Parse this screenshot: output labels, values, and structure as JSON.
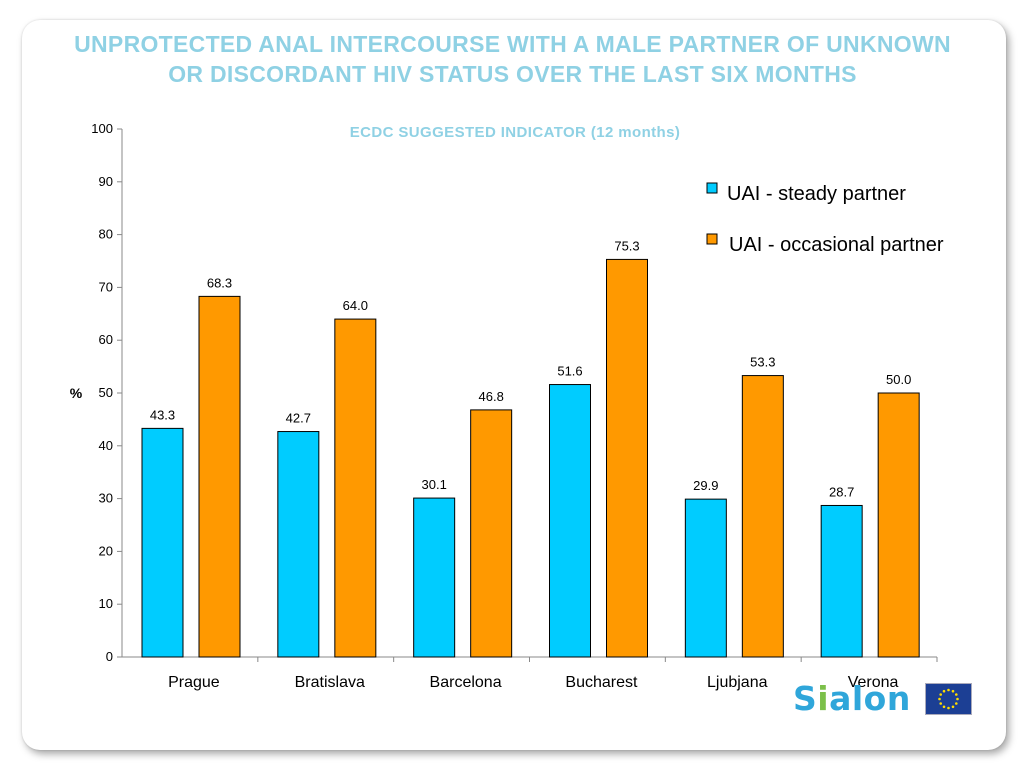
{
  "slide": {
    "title": "UNPROTECTED ANAL INTERCOURSE WITH A MALE PARTNER OF UNKNOWN OR DISCORDANT HIV STATUS OVER THE LAST SIX MONTHS",
    "subtitle": "ECDC SUGGESTED INDICATOR (12 months)",
    "logo_text": "Sialon",
    "logo_image": "eu-flag"
  },
  "colors": {
    "title": "#8fd1e4",
    "steady": "#00ccff",
    "occasional": "#ff9900"
  },
  "chart_data": {
    "type": "bar",
    "categories": [
      "Prague",
      "Bratislava",
      "Barcelona",
      "Bucharest",
      "Ljubjana",
      "Verona"
    ],
    "series": [
      {
        "name": "UAI - steady partner",
        "color": "#00ccff",
        "values": [
          43.3,
          42.7,
          30.1,
          51.6,
          29.9,
          28.7
        ]
      },
      {
        "name": "UAI - occasional partner",
        "color": "#ff9900",
        "values": [
          68.3,
          64.0,
          46.8,
          75.3,
          53.3,
          50.0
        ]
      }
    ],
    "data_labels": [
      [
        "43.3",
        "42.7",
        "30.1",
        "51.6",
        "29.9",
        "28.7"
      ],
      [
        "68.3",
        "64.0",
        "46.8",
        "75.3",
        "53.3",
        "50.0"
      ]
    ],
    "ylabel": "%",
    "ylim": [
      0,
      100
    ],
    "yticks": [
      0,
      10,
      20,
      30,
      40,
      50,
      60,
      70,
      80,
      90,
      100
    ],
    "ytick_labels": [
      "0",
      "10",
      "20",
      "30",
      "40",
      "50",
      "60",
      "70",
      "80",
      "90",
      "100"
    ],
    "grid": false,
    "legend_position": "top-right"
  }
}
